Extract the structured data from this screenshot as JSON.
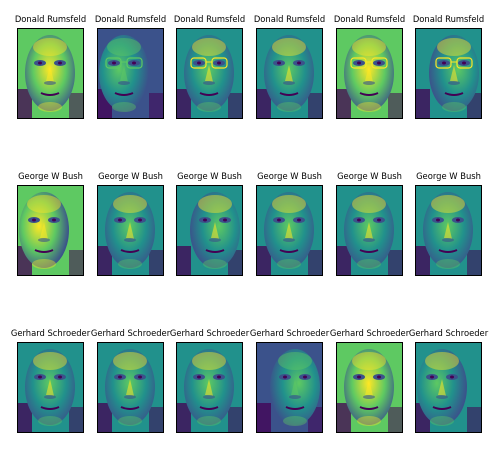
{
  "figure": {
    "rows": [
      {
        "person": "Donald Rumsfeld",
        "faces": [
          {
            "title": "Donald Rumsfeld",
            "tone": "bright",
            "pose": "front",
            "glasses": false
          },
          {
            "title": "Donald Rumsfeld",
            "tone": "dark",
            "pose": "left",
            "glasses": true
          },
          {
            "title": "Donald Rumsfeld",
            "tone": "mid",
            "pose": "front",
            "glasses": true
          },
          {
            "title": "Donald Rumsfeld",
            "tone": "mid",
            "pose": "front",
            "glasses": false
          },
          {
            "title": "Donald Rumsfeld",
            "tone": "bright",
            "pose": "front",
            "glasses": true
          },
          {
            "title": "Donald Rumsfeld",
            "tone": "mid",
            "pose": "right",
            "glasses": true
          }
        ]
      },
      {
        "person": "George W Bush",
        "faces": [
          {
            "title": "George W Bush",
            "tone": "bright",
            "pose": "left",
            "glasses": false
          },
          {
            "title": "George W Bush",
            "tone": "mid",
            "pose": "front",
            "glasses": false
          },
          {
            "title": "George W Bush",
            "tone": "mid",
            "pose": "right",
            "glasses": false
          },
          {
            "title": "George W Bush",
            "tone": "mid",
            "pose": "front",
            "glasses": false
          },
          {
            "title": "George W Bush",
            "tone": "mid",
            "pose": "front",
            "glasses": false
          },
          {
            "title": "George W Bush",
            "tone": "mid",
            "pose": "front",
            "glasses": false
          }
        ]
      },
      {
        "person": "Gerhard Schroeder",
        "faces": [
          {
            "title": "Gerhard Schroeder",
            "tone": "mid",
            "pose": "front",
            "glasses": false
          },
          {
            "title": "Gerhard Schroeder",
            "tone": "mid",
            "pose": "front",
            "glasses": false
          },
          {
            "title": "Gerhard Schroeder",
            "tone": "mid",
            "pose": "front",
            "glasses": false
          },
          {
            "title": "Gerhard Schroeder",
            "tone": "dark",
            "pose": "right",
            "glasses": false
          },
          {
            "title": "Gerhard Schroeder",
            "tone": "bright",
            "pose": "front",
            "glasses": false
          },
          {
            "title": "Gerhard Schroeder",
            "tone": "mid",
            "pose": "left",
            "glasses": false
          }
        ]
      }
    ],
    "colormap": [
      "#440154",
      "#3b528b",
      "#21918c",
      "#5ec962",
      "#fde725"
    ]
  }
}
